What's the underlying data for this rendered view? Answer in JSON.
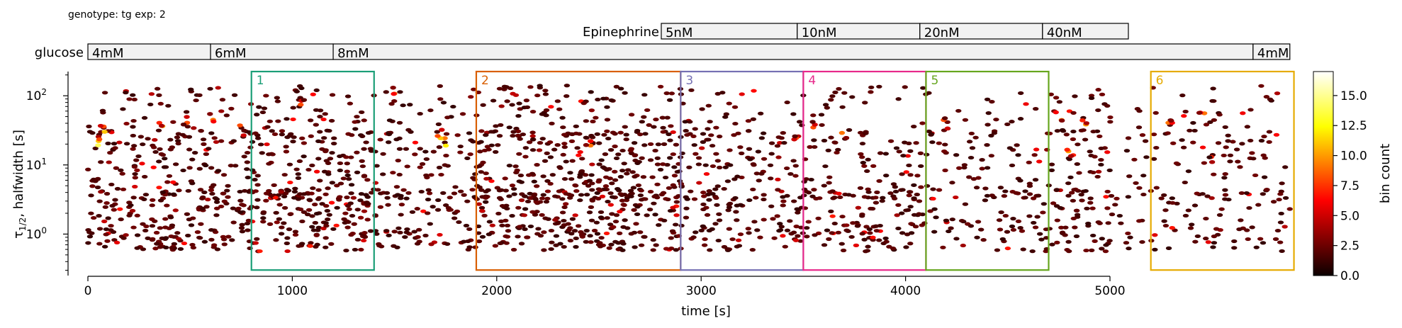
{
  "header": {
    "genotype_text": "genotype: tg  exp: 2"
  },
  "stimulus": {
    "epinephrine": {
      "label": "Epinephrine",
      "blocks": [
        {
          "label": "5nM",
          "start": 2805,
          "end": 3470
        },
        {
          "label": "10nM",
          "start": 3470,
          "end": 4070
        },
        {
          "label": "20nM",
          "start": 4070,
          "end": 4670
        },
        {
          "label": "40nM",
          "start": 4670,
          "end": 5090
        }
      ]
    },
    "glucose": {
      "label": "glucose",
      "blocks": [
        {
          "label": "4mM",
          "start": 0,
          "end": 600
        },
        {
          "label": "6mM",
          "start": 600,
          "end": 1200
        },
        {
          "label": "8mM",
          "start": 1200,
          "end": 5700
        },
        {
          "label": "4mM",
          "start": 5700,
          "end": 5880
        }
      ]
    },
    "fill_color": "#f2f2f2"
  },
  "chart_data": {
    "type": "heatmap",
    "subtype": "hexbin-scatter",
    "xlabel": "time [s]",
    "ylabel": "τ1/2, halfwidth [s]",
    "xlim": [
      0,
      5000
    ],
    "xticks": [
      {
        "value": 0,
        "label": "0"
      },
      {
        "value": 1000,
        "label": "1000"
      },
      {
        "value": 2000,
        "label": "2000"
      },
      {
        "value": 3000,
        "label": "3000"
      },
      {
        "value": 4000,
        "label": "4000"
      },
      {
        "value": 5000,
        "label": "5000"
      }
    ],
    "ylim_log10": [
      -0.6,
      2.35
    ],
    "yscale": "log",
    "yticks": [
      {
        "value": 1,
        "base": "10",
        "exp": "0"
      },
      {
        "value": 10,
        "base": "10",
        "exp": "1"
      },
      {
        "value": 100,
        "base": "10",
        "exp": "2"
      }
    ],
    "colorbar": {
      "label": "bin count",
      "min": 0,
      "max": 17,
      "ticks": [
        "0.0",
        "2.5",
        "5.0",
        "7.5",
        "10.0",
        "12.5",
        "15.0"
      ],
      "colormap": "hot"
    },
    "regions": [
      {
        "label": "1",
        "x0": 800,
        "x1": 1400,
        "color": "#1b9e77"
      },
      {
        "label": "2",
        "x0": 1900,
        "x1": 2900,
        "color": "#d95f02"
      },
      {
        "label": "3",
        "x0": 2900,
        "x1": 3500,
        "color": "#7570b3"
      },
      {
        "label": "4",
        "x0": 3500,
        "x1": 4100,
        "color": "#e7298a"
      },
      {
        "label": "5",
        "x0": 4100,
        "x1": 4700,
        "color": "#66a61e"
      },
      {
        "label": "6",
        "x0": 5200,
        "x1": 5900,
        "color": "#e6ab02"
      }
    ],
    "region_ylim_log10": [
      -0.52,
      2.35
    ],
    "hotspots": [
      {
        "x": 60,
        "ylog": 1.3,
        "count": 14
      },
      {
        "x": 70,
        "ylog": 1.55,
        "count": 11
      },
      {
        "x": 360,
        "ylog": 1.6,
        "count": 10
      },
      {
        "x": 480,
        "ylog": 1.65,
        "count": 8
      },
      {
        "x": 610,
        "ylog": 1.7,
        "count": 9
      },
      {
        "x": 750,
        "ylog": 1.5,
        "count": 8
      },
      {
        "x": 1050,
        "ylog": 1.9,
        "count": 8
      },
      {
        "x": 1500,
        "ylog": 2.1,
        "count": 9
      },
      {
        "x": 1750,
        "ylog": 1.35,
        "count": 15
      },
      {
        "x": 1720,
        "ylog": 1.45,
        "count": 11
      },
      {
        "x": 2450,
        "ylog": 1.35,
        "count": 9
      },
      {
        "x": 3450,
        "ylog": 1.4,
        "count": 8
      },
      {
        "x": 3550,
        "ylog": 1.55,
        "count": 8
      },
      {
        "x": 3700,
        "ylog": 1.4,
        "count": 9
      },
      {
        "x": 4200,
        "ylog": 1.6,
        "count": 8
      },
      {
        "x": 4750,
        "ylog": 1.7,
        "count": 9
      },
      {
        "x": 4800,
        "ylog": 1.2,
        "count": 10
      },
      {
        "x": 4880,
        "ylog": 1.6,
        "count": 10
      },
      {
        "x": 5300,
        "ylog": 1.6,
        "count": 9
      },
      {
        "x": 5450,
        "ylog": 1.8,
        "count": 9
      },
      {
        "x": 5500,
        "ylog": 1.1,
        "count": 7
      }
    ],
    "density_profile": [
      {
        "x": 0,
        "x1": 600,
        "n": 260
      },
      {
        "x": 600,
        "x1": 1400,
        "n": 380
      },
      {
        "x": 1400,
        "x1": 1900,
        "n": 160
      },
      {
        "x": 1900,
        "x1": 2900,
        "n": 560
      },
      {
        "x": 2900,
        "x1": 3500,
        "n": 210
      },
      {
        "x": 3500,
        "x1": 4100,
        "n": 200
      },
      {
        "x": 4100,
        "x1": 4700,
        "n": 140
      },
      {
        "x": 4700,
        "x1": 5000,
        "n": 110
      },
      {
        "x": 5000,
        "x1": 5200,
        "n": 30
      },
      {
        "x": 5200,
        "x1": 5880,
        "n": 150
      }
    ]
  }
}
